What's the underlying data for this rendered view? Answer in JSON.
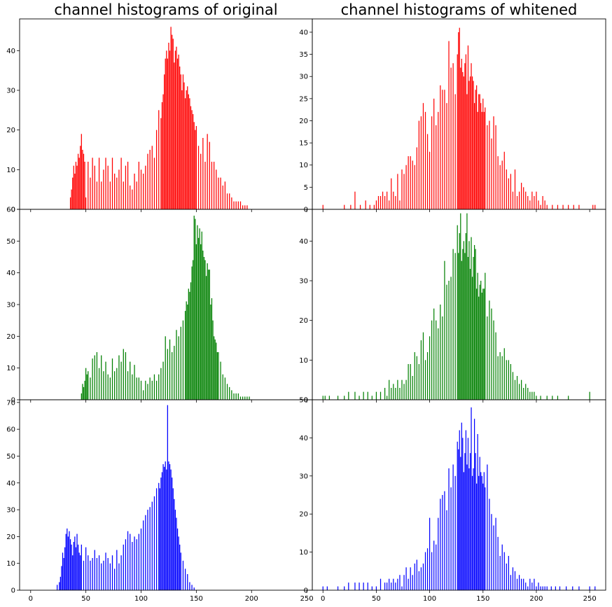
{
  "titles": {
    "left": "channel histograms of original",
    "right": "channel histograms of whitened"
  },
  "colors": {
    "red": "#ff0000",
    "green": "#008000",
    "blue": "#0000ff"
  },
  "x_ticks": [
    0,
    50,
    100,
    150,
    200,
    250
  ],
  "chart_data": [
    {
      "type": "bar",
      "panel": "original-red",
      "color": "#ff0000",
      "xlim": [
        -10,
        255
      ],
      "ylim": [
        0,
        48
      ],
      "yticks": [
        0,
        10,
        20,
        30,
        40
      ],
      "x": [
        36,
        37,
        38,
        39,
        40,
        41,
        42,
        43,
        44,
        45,
        46,
        47,
        48,
        49,
        50,
        52,
        54,
        56,
        58,
        60,
        62,
        64,
        66,
        68,
        70,
        72,
        74,
        76,
        78,
        80,
        82,
        84,
        86,
        88,
        90,
        92,
        94,
        96,
        98,
        100,
        102,
        104,
        106,
        108,
        110,
        112,
        114,
        116,
        118,
        119,
        120,
        121,
        122,
        123,
        124,
        125,
        126,
        127,
        128,
        129,
        130,
        131,
        132,
        133,
        134,
        135,
        136,
        137,
        138,
        139,
        140,
        141,
        142,
        143,
        144,
        145,
        146,
        147,
        148,
        149,
        150,
        152,
        154,
        156,
        158,
        160,
        162,
        164,
        166,
        168,
        170,
        172,
        174,
        176,
        178,
        180,
        182,
        184,
        186,
        188,
        190,
        192,
        194,
        196
      ],
      "values": [
        3,
        5,
        8,
        11,
        9,
        12,
        11,
        14,
        13,
        16,
        19,
        15,
        14,
        12,
        3,
        12,
        8,
        13,
        11,
        7,
        13,
        7,
        10,
        13,
        11,
        7,
        13,
        9,
        8,
        10,
        13,
        7,
        11,
        12,
        6,
        5,
        9,
        7,
        12,
        10,
        9,
        11,
        14,
        15,
        16,
        13,
        20,
        25,
        23,
        27,
        29,
        34,
        38,
        40,
        38,
        42,
        40,
        46,
        44,
        43,
        37,
        40,
        41,
        38,
        39,
        36,
        34,
        30,
        34,
        32,
        28,
        30,
        31,
        29,
        28,
        26,
        25,
        24,
        22,
        20,
        21,
        16,
        14,
        18,
        12,
        19,
        17,
        12,
        12,
        10,
        8,
        8,
        6,
        7,
        4,
        4,
        3,
        2,
        2,
        2,
        2,
        1,
        1,
        1
      ]
    },
    {
      "type": "bar",
      "panel": "whitened-red",
      "color": "#ff0000",
      "xlim": [
        -10,
        265
      ],
      "ylim": [
        0,
        43
      ],
      "yticks": [
        0,
        5,
        10,
        15,
        20,
        25,
        30,
        35,
        40
      ],
      "x": [
        0,
        20,
        26,
        30,
        35,
        40,
        44,
        48,
        50,
        52,
        54,
        56,
        58,
        60,
        62,
        64,
        66,
        68,
        70,
        72,
        74,
        76,
        78,
        80,
        82,
        84,
        86,
        88,
        90,
        92,
        94,
        96,
        98,
        100,
        102,
        104,
        106,
        108,
        110,
        112,
        114,
        116,
        118,
        120,
        122,
        124,
        126,
        127,
        128,
        129,
        130,
        131,
        132,
        133,
        134,
        135,
        136,
        137,
        138,
        139,
        140,
        141,
        142,
        143,
        144,
        145,
        146,
        147,
        148,
        149,
        150,
        151,
        152,
        154,
        156,
        158,
        160,
        162,
        164,
        166,
        168,
        170,
        172,
        174,
        176,
        178,
        180,
        182,
        184,
        186,
        188,
        190,
        192,
        194,
        196,
        198,
        200,
        202,
        204,
        206,
        208,
        210,
        215,
        220,
        225,
        230,
        235,
        240,
        253,
        255
      ],
      "values": [
        1,
        1,
        1,
        4,
        1,
        2,
        1,
        1,
        2,
        3,
        3,
        4,
        3,
        4,
        2,
        7,
        4,
        3,
        8,
        2,
        9,
        8,
        10,
        12,
        12,
        11,
        10,
        14,
        20,
        21,
        24,
        22,
        17,
        13,
        21,
        25,
        19,
        22,
        28,
        27,
        27,
        24,
        38,
        32,
        33,
        26,
        35,
        40,
        41,
        32,
        34,
        31,
        30,
        33,
        35,
        26,
        37,
        29,
        30,
        33,
        30,
        29,
        24,
        27,
        28,
        22,
        26,
        26,
        24,
        22,
        25,
        22,
        23,
        19,
        20,
        16,
        21,
        19,
        12,
        10,
        11,
        13,
        9,
        7,
        8,
        4,
        9,
        3,
        4,
        6,
        5,
        4,
        3,
        2,
        4,
        3,
        4,
        2,
        1,
        3,
        2,
        1,
        1,
        1,
        1,
        1,
        1,
        1,
        1,
        1
      ]
    },
    {
      "type": "bar",
      "panel": "original-green",
      "color": "#008000",
      "xlim": [
        -10,
        255
      ],
      "ylim": [
        0,
        60
      ],
      "yticks": [
        0,
        10,
        20,
        30,
        40,
        50,
        60
      ],
      "x": [
        46,
        47,
        48,
        49,
        50,
        51,
        52,
        54,
        56,
        58,
        60,
        62,
        64,
        66,
        68,
        70,
        72,
        74,
        76,
        78,
        80,
        82,
        84,
        86,
        88,
        90,
        92,
        94,
        96,
        98,
        100,
        102,
        104,
        106,
        108,
        110,
        112,
        114,
        116,
        118,
        120,
        122,
        124,
        126,
        128,
        130,
        132,
        134,
        136,
        138,
        140,
        141,
        142,
        143,
        144,
        145,
        146,
        147,
        148,
        149,
        150,
        151,
        152,
        153,
        154,
        155,
        156,
        157,
        158,
        159,
        160,
        161,
        162,
        163,
        164,
        165,
        166,
        167,
        168,
        169,
        170,
        172,
        174,
        176,
        178,
        180,
        182,
        184,
        186,
        188,
        190,
        192,
        194,
        196,
        198
      ],
      "values": [
        2,
        5,
        4,
        6,
        10,
        8,
        9,
        7,
        13,
        14,
        15,
        10,
        14,
        9,
        12,
        8,
        7,
        13,
        9,
        10,
        14,
        12,
        16,
        15,
        9,
        12,
        8,
        11,
        7,
        7,
        6,
        3,
        6,
        5,
        7,
        6,
        8,
        6,
        8,
        10,
        12,
        20,
        16,
        19,
        15,
        17,
        22,
        20,
        23,
        25,
        28,
        31,
        30,
        35,
        34,
        37,
        42,
        44,
        58,
        57,
        49,
        55,
        51,
        54,
        49,
        53,
        47,
        45,
        44,
        39,
        43,
        41,
        41,
        30,
        32,
        25,
        20,
        19,
        18,
        15,
        15,
        12,
        8,
        7,
        5,
        4,
        3,
        2,
        2,
        2,
        1,
        1,
        1,
        1,
        1
      ]
    },
    {
      "type": "bar",
      "panel": "whitened-green",
      "color": "#008000",
      "xlim": [
        -10,
        265
      ],
      "ylim": [
        0,
        48
      ],
      "yticks": [
        0,
        10,
        20,
        30,
        40
      ],
      "x": [
        0,
        2,
        6,
        14,
        20,
        24,
        30,
        34,
        38,
        42,
        46,
        50,
        54,
        58,
        60,
        62,
        64,
        66,
        68,
        70,
        72,
        74,
        76,
        78,
        80,
        82,
        84,
        86,
        88,
        90,
        92,
        94,
        96,
        98,
        100,
        102,
        104,
        106,
        108,
        110,
        112,
        114,
        116,
        118,
        120,
        122,
        124,
        126,
        127,
        128,
        129,
        130,
        131,
        132,
        133,
        134,
        135,
        136,
        137,
        138,
        139,
        140,
        141,
        142,
        143,
        144,
        145,
        146,
        147,
        148,
        149,
        150,
        151,
        152,
        154,
        156,
        158,
        160,
        162,
        164,
        166,
        168,
        170,
        172,
        174,
        176,
        178,
        180,
        182,
        184,
        186,
        188,
        190,
        192,
        194,
        196,
        198,
        200,
        204,
        210,
        215,
        220,
        230,
        250
      ],
      "values": [
        1,
        1,
        1,
        1,
        1,
        2,
        2,
        1,
        2,
        2,
        1,
        2,
        2,
        3,
        1,
        5,
        3,
        4,
        3,
        5,
        3,
        5,
        4,
        5,
        9,
        9,
        6,
        12,
        11,
        9,
        15,
        17,
        10,
        12,
        16,
        20,
        23,
        20,
        18,
        24,
        21,
        35,
        29,
        30,
        31,
        38,
        37,
        44,
        37,
        42,
        47,
        35,
        38,
        40,
        37,
        42,
        47,
        36,
        40,
        33,
        41,
        31,
        36,
        39,
        38,
        28,
        32,
        26,
        29,
        30,
        27,
        28,
        28,
        32,
        21,
        25,
        23,
        20,
        17,
        11,
        12,
        11,
        13,
        10,
        10,
        9,
        7,
        5,
        6,
        4,
        5,
        3,
        4,
        3,
        2,
        2,
        2,
        1,
        1,
        1,
        1,
        1,
        1,
        2
      ]
    },
    {
      "type": "bar",
      "panel": "original-blue",
      "color": "#0000ff",
      "xlim": [
        -10,
        255
      ],
      "ylim": [
        0,
        71
      ],
      "yticks": [
        0,
        10,
        20,
        30,
        40,
        50,
        60,
        70
      ],
      "x": [
        24,
        26,
        27,
        28,
        29,
        30,
        31,
        32,
        33,
        34,
        35,
        36,
        37,
        38,
        39,
        40,
        41,
        42,
        43,
        44,
        45,
        46,
        48,
        50,
        52,
        54,
        56,
        58,
        60,
        62,
        64,
        66,
        68,
        70,
        72,
        74,
        76,
        78,
        80,
        82,
        84,
        86,
        88,
        90,
        92,
        94,
        96,
        98,
        100,
        102,
        104,
        106,
        108,
        110,
        112,
        114,
        116,
        117,
        118,
        119,
        120,
        121,
        122,
        123,
        124,
        125,
        126,
        127,
        128,
        129,
        130,
        131,
        132,
        133,
        134,
        135,
        136,
        138,
        140,
        142,
        144,
        146,
        148
      ],
      "values": [
        2,
        3,
        5,
        9,
        14,
        12,
        16,
        21,
        23,
        20,
        22,
        19,
        17,
        13,
        18,
        20,
        16,
        21,
        17,
        14,
        13,
        17,
        11,
        16,
        13,
        11,
        12,
        15,
        12,
        13,
        10,
        11,
        14,
        12,
        10,
        13,
        8,
        15,
        10,
        13,
        17,
        19,
        22,
        21,
        18,
        20,
        19,
        21,
        23,
        26,
        28,
        30,
        31,
        33,
        35,
        38,
        40,
        38,
        42,
        44,
        47,
        46,
        48,
        45,
        69,
        48,
        47,
        45,
        42,
        38,
        34,
        30,
        27,
        23,
        20,
        17,
        14,
        11,
        8,
        6,
        3,
        2,
        1
      ]
    },
    {
      "type": "bar",
      "panel": "whitened-blue",
      "color": "#0000ff",
      "xlim": [
        -10,
        265
      ],
      "ylim": [
        0,
        50
      ],
      "yticks": [
        0,
        10,
        20,
        30,
        40,
        50
      ],
      "x": [
        0,
        4,
        14,
        20,
        24,
        30,
        34,
        38,
        42,
        46,
        50,
        54,
        58,
        60,
        62,
        64,
        66,
        68,
        70,
        72,
        74,
        76,
        78,
        80,
        82,
        84,
        86,
        88,
        90,
        92,
        94,
        96,
        98,
        100,
        102,
        104,
        106,
        108,
        110,
        112,
        114,
        116,
        118,
        120,
        122,
        124,
        126,
        127,
        128,
        129,
        130,
        131,
        132,
        133,
        134,
        135,
        136,
        137,
        138,
        139,
        140,
        141,
        142,
        143,
        144,
        145,
        146,
        147,
        148,
        149,
        150,
        151,
        152,
        154,
        156,
        158,
        160,
        162,
        164,
        166,
        168,
        170,
        172,
        174,
        176,
        178,
        180,
        182,
        184,
        186,
        188,
        190,
        192,
        194,
        196,
        198,
        200,
        202,
        204,
        206,
        208,
        210,
        214,
        218,
        222,
        228,
        234,
        240,
        250,
        255
      ],
      "values": [
        1,
        1,
        1,
        1,
        2,
        2,
        2,
        2,
        2,
        1,
        1,
        3,
        2,
        2,
        3,
        2,
        3,
        2,
        3,
        4,
        1,
        4,
        6,
        3,
        6,
        4,
        7,
        8,
        5,
        6,
        7,
        10,
        11,
        19,
        10,
        13,
        12,
        19,
        24,
        25,
        26,
        21,
        32,
        27,
        33,
        30,
        39,
        37,
        42,
        35,
        44,
        40,
        31,
        36,
        42,
        33,
        40,
        32,
        36,
        48,
        30,
        32,
        45,
        36,
        28,
        41,
        30,
        35,
        31,
        30,
        28,
        31,
        27,
        33,
        24,
        20,
        17,
        19,
        14,
        9,
        12,
        10,
        7,
        9,
        4,
        6,
        5,
        3,
        4,
        3,
        3,
        2,
        1,
        3,
        2,
        3,
        1,
        2,
        1,
        1,
        1,
        1,
        1,
        1,
        1,
        1,
        1,
        1,
        1,
        1
      ]
    }
  ]
}
